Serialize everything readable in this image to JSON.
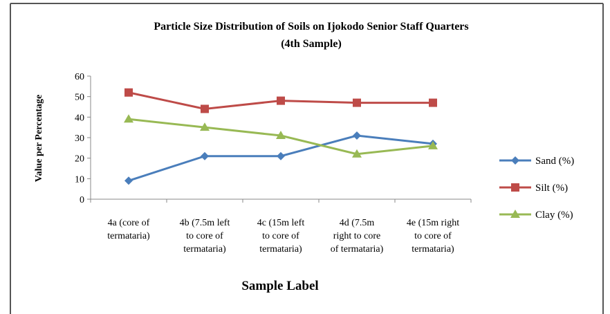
{
  "chart_data": {
    "type": "line",
    "title": [
      "Particle Size Distribution of Soils on Ijokodo Senior Staff Quarters",
      "(4th Sample)"
    ],
    "x_label": "Sample Label",
    "y_label": "Value per Percentage",
    "categories": [
      [
        "4a (core of",
        "termataria)"
      ],
      [
        "4b (7.5m left",
        "to core of",
        "termataria)"
      ],
      [
        "4c (15m left",
        "to core of",
        "termataria)"
      ],
      [
        "4d (7.5m",
        "right to core",
        "of termataria)"
      ],
      [
        "4e (15m right",
        "to core of",
        "termataria)"
      ]
    ],
    "series": [
      {
        "name": "Sand (%)",
        "color": "#4a7ebb",
        "marker": "diamond",
        "values": [
          9,
          21,
          21,
          31,
          27
        ]
      },
      {
        "name": "Silt (%)",
        "color": "#be4b48",
        "marker": "square",
        "values": [
          52,
          44,
          48,
          47,
          47
        ]
      },
      {
        "name": "Clay (%)",
        "color": "#98b954",
        "marker": "triangle",
        "values": [
          39,
          35,
          31,
          22,
          26
        ]
      }
    ],
    "ylim": [
      0,
      60
    ],
    "yticks": [
      0,
      10,
      20,
      30,
      40,
      50,
      60
    ],
    "legend": "right"
  }
}
